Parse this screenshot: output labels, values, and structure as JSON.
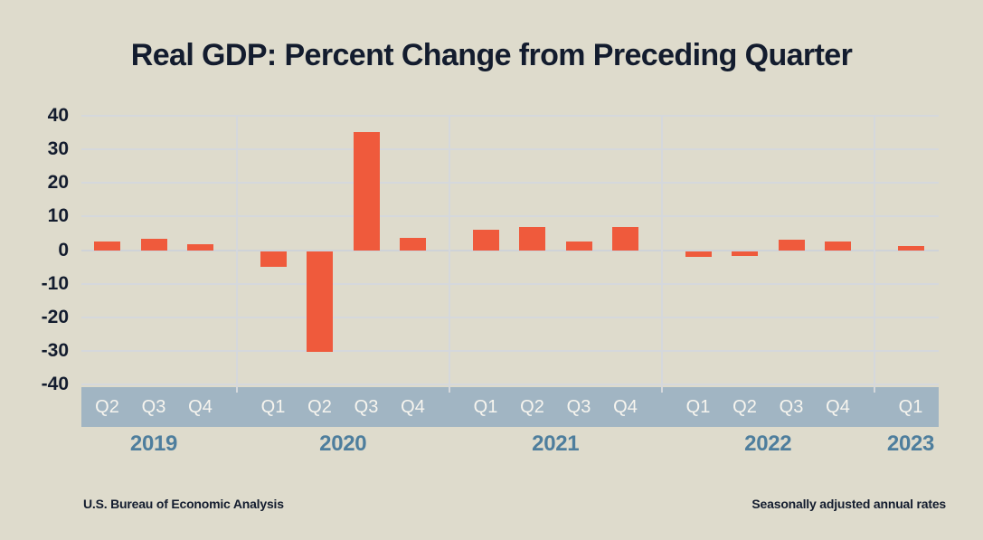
{
  "title": "Real GDP: Percent Change from Preceding Quarter",
  "footer": {
    "source": "U.S. Bureau of Economic Analysis",
    "note": "Seasonally adjusted annual rates"
  },
  "colors": {
    "background": "#DEDBCC",
    "bar": "#EF5A3C",
    "axis_band": "#A1B5C3",
    "year_label": "#4E7E9D",
    "quarter_label": "#F7F5EF",
    "text": "#131C2E",
    "gridline": "#D5D8DC"
  },
  "chart_data": {
    "type": "bar",
    "title": "Real GDP: Percent Change from Preceding Quarter",
    "ylim": [
      -40,
      40
    ],
    "yticks": [
      40,
      30,
      20,
      10,
      0,
      -10,
      -20,
      -30,
      -40
    ],
    "grid": true,
    "legend": "none",
    "bar_color": "#EF5A3C",
    "groups": [
      {
        "year": "2019",
        "quarters": [
          "Q2",
          "Q3",
          "Q4"
        ],
        "values": [
          2.7,
          3.6,
          1.8
        ]
      },
      {
        "year": "2020",
        "quarters": [
          "Q1",
          "Q2",
          "Q3",
          "Q4"
        ],
        "values": [
          -4.6,
          -29.9,
          35.3,
          3.9
        ]
      },
      {
        "year": "2021",
        "quarters": [
          "Q1",
          "Q2",
          "Q3",
          "Q4"
        ],
        "values": [
          6.3,
          7.0,
          2.7,
          7.0
        ]
      },
      {
        "year": "2022",
        "quarters": [
          "Q1",
          "Q2",
          "Q3",
          "Q4"
        ],
        "values": [
          -1.6,
          -0.6,
          3.2,
          2.6
        ]
      },
      {
        "year": "2023",
        "quarters": [
          "Q1"
        ],
        "values": [
          1.1
        ]
      }
    ],
    "source": "U.S. Bureau of Economic Analysis",
    "note": "Seasonally adjusted annual rates"
  }
}
